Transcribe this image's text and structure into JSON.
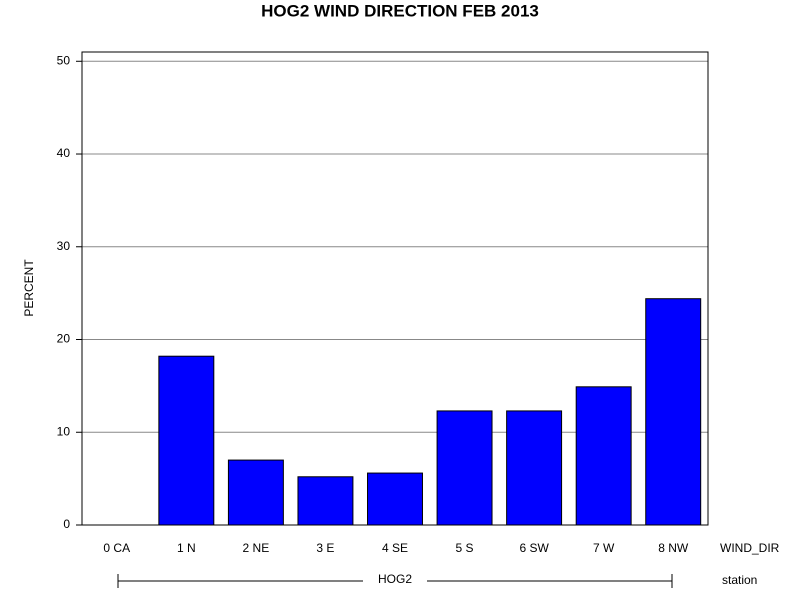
{
  "chart_data": {
    "type": "bar",
    "title": "HOG2 WIND DIRECTION FEB 2013",
    "y_label": "PERCENT",
    "x_label": "WIND_DIR",
    "group_label": "HOG2",
    "group_axis_label": "station",
    "categories": [
      "0 CA",
      "1 N",
      "2 NE",
      "3 E",
      "4 SE",
      "5 S",
      "6 SW",
      "7 W",
      "8 NW"
    ],
    "values": [
      0,
      18.2,
      7.0,
      5.2,
      5.6,
      12.3,
      12.3,
      14.9,
      24.4
    ],
    "color": "#0000ff",
    "ylim": [
      0,
      51
    ],
    "yticks": [
      0,
      10,
      20,
      30,
      40,
      50
    ],
    "grid": true
  }
}
